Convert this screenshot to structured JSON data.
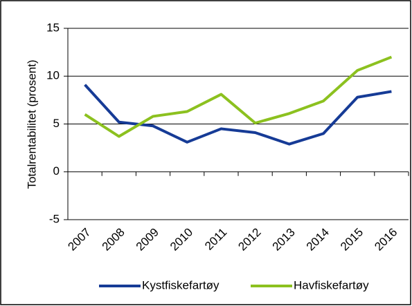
{
  "chart_data": {
    "type": "line",
    "y_label": "Totalrentabilitet (prosent)",
    "categories": [
      "2007",
      "2008",
      "2009",
      "2010",
      "2011",
      "2012",
      "2013",
      "2014",
      "2015",
      "2016"
    ],
    "series": [
      {
        "name": "Kystfiskefartøy",
        "color": "#163b96",
        "values": [
          9.1,
          5.2,
          4.8,
          3.1,
          4.5,
          4.1,
          2.9,
          4.0,
          7.8,
          8.4
        ]
      },
      {
        "name": "Havfiskefartøy",
        "color": "#8cc11f",
        "values": [
          6.0,
          3.7,
          5.8,
          6.3,
          8.1,
          5.1,
          6.1,
          7.4,
          10.6,
          12.0
        ]
      }
    ],
    "ylim": [
      -5,
      15
    ],
    "yticks": [
      -5,
      0,
      5,
      10,
      15
    ],
    "grid": true
  }
}
